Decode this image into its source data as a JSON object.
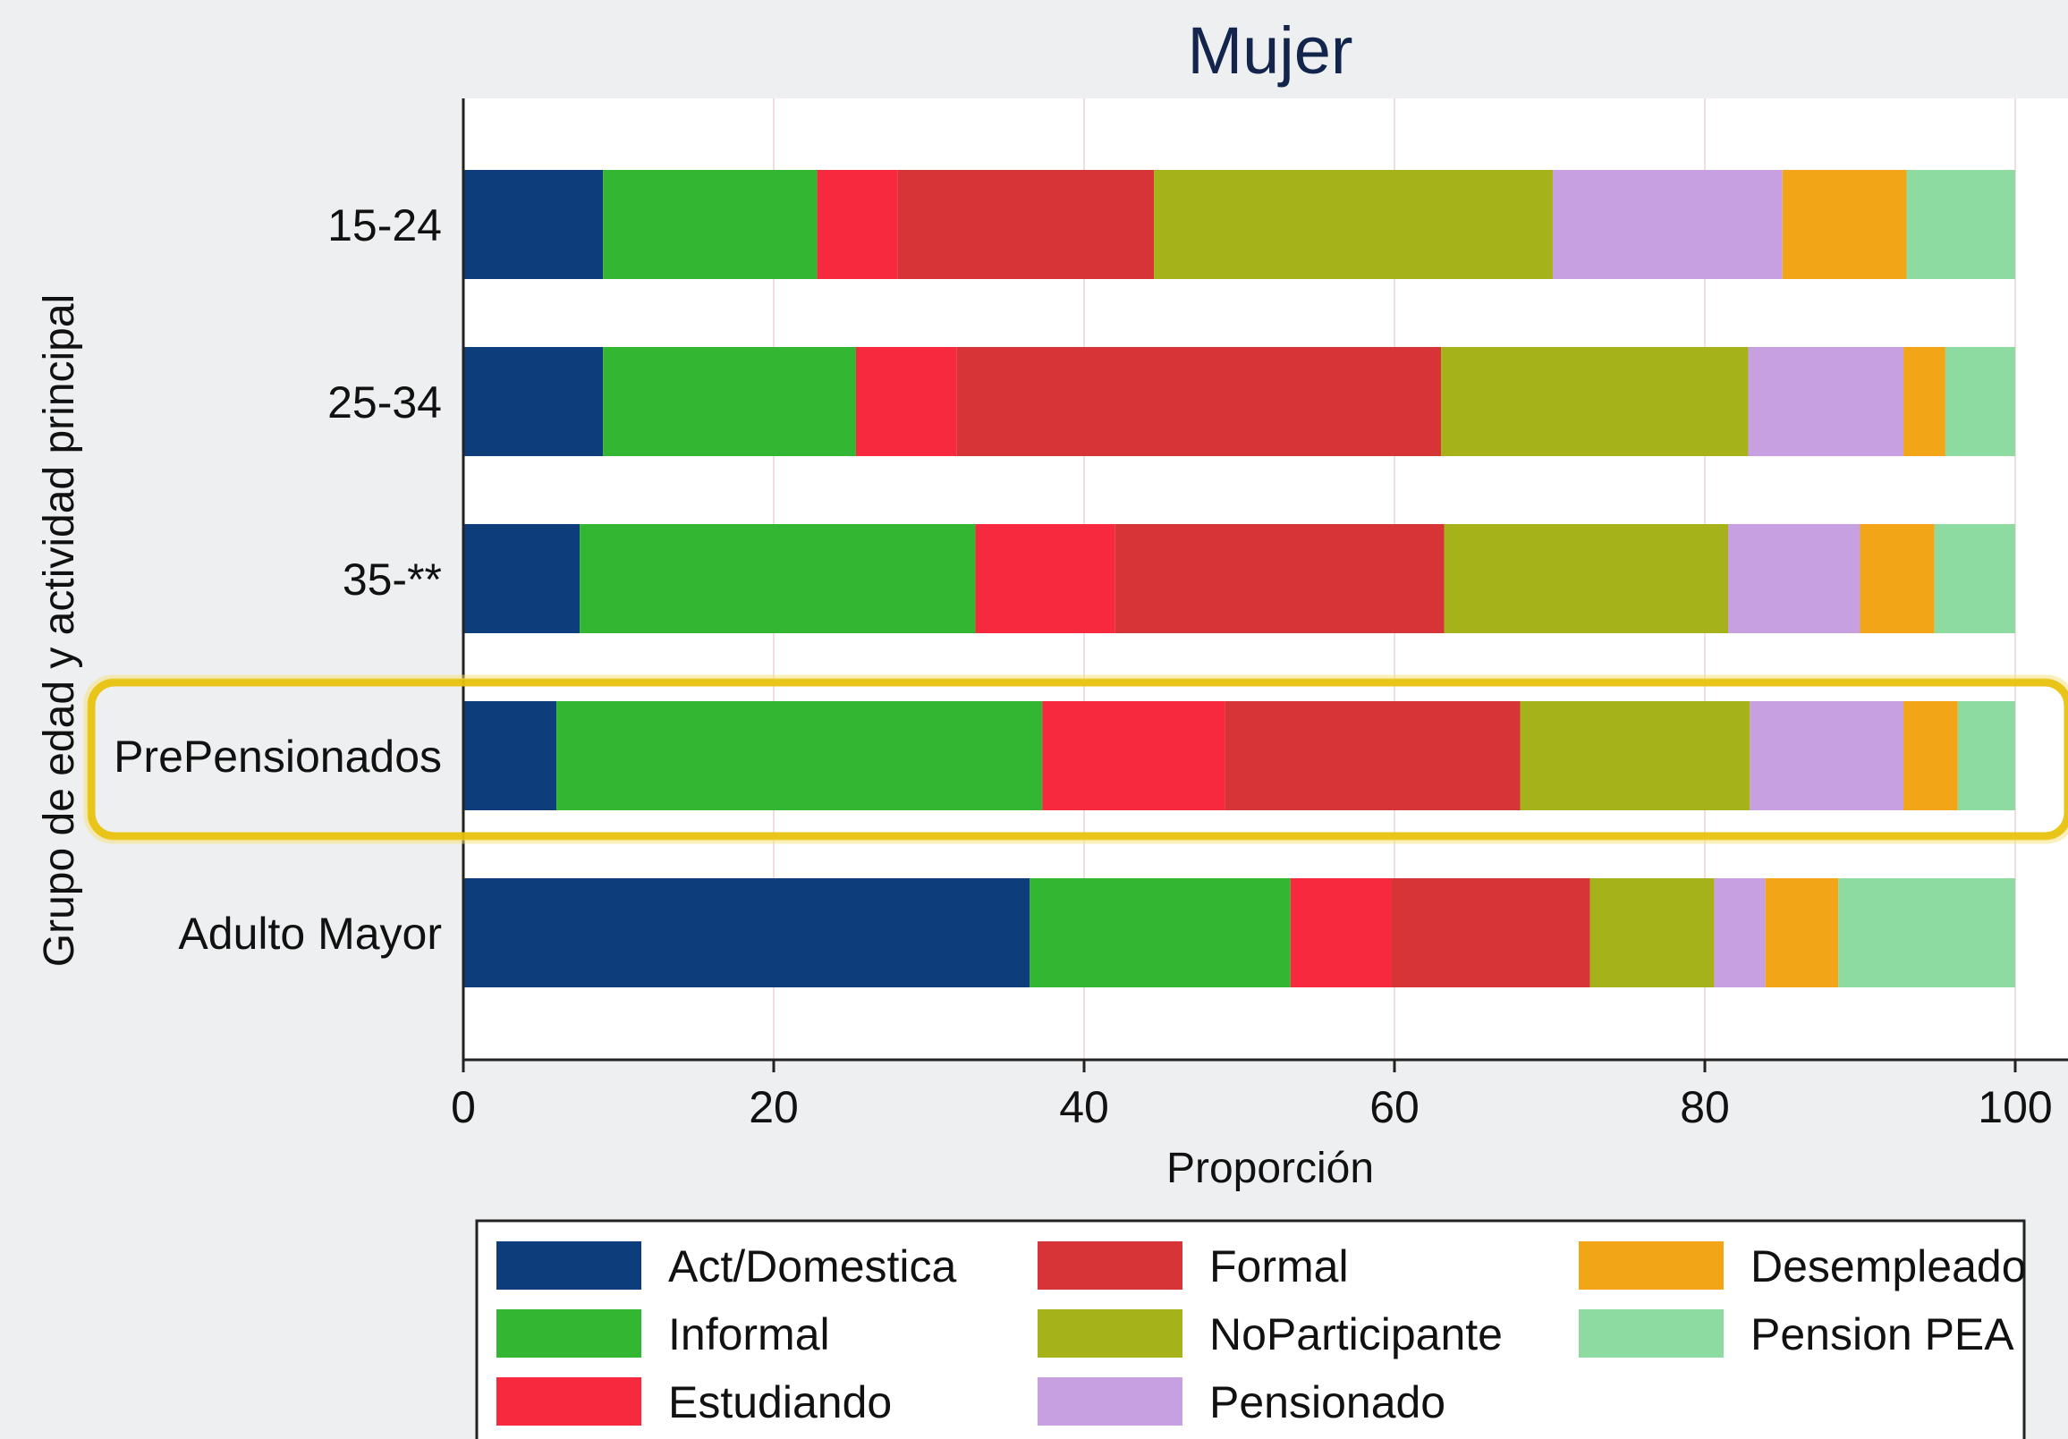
{
  "chart_data": {
    "type": "bar",
    "orientation": "horizontal",
    "stacked": true,
    "title": "Mujer",
    "xlabel": "Proporción",
    "ylabel": "Grupo de edad y actividad principal",
    "xlim": [
      0,
      100
    ],
    "xticks": [
      "0",
      "20",
      "40",
      "60",
      "80",
      "100"
    ],
    "grid": "vertical",
    "legend_position": "bottom",
    "highlighted_category": "PrePensionados",
    "categories": [
      "15-24",
      "25-34",
      "35-**",
      "PrePensionados",
      "Adulto Mayor"
    ],
    "series": [
      {
        "name": "Act/Domestica",
        "color": "#0d3d7a",
        "values": [
          9.0,
          9.0,
          7.5,
          6.0,
          36.5
        ]
      },
      {
        "name": "Informal",
        "color": "#33b733",
        "values": [
          13.8,
          16.3,
          25.5,
          31.3,
          16.8
        ]
      },
      {
        "name": "Estudiando",
        "color": "#f7293f",
        "values": [
          5.2,
          6.5,
          9.0,
          11.8,
          6.5
        ]
      },
      {
        "name": "Formal",
        "color": "#d63437",
        "values": [
          16.5,
          31.2,
          21.2,
          19.0,
          12.8
        ]
      },
      {
        "name": "NoParticipante",
        "color": "#a6b21a",
        "values": [
          25.7,
          19.8,
          18.3,
          14.8,
          8.0
        ]
      },
      {
        "name": "Pensionado",
        "color": "#c6a0e0",
        "values": [
          14.8,
          10.0,
          8.5,
          9.9,
          3.3
        ]
      },
      {
        "name": "Desempleado",
        "color": "#f2a516",
        "values": [
          8.0,
          2.7,
          4.8,
          3.5,
          4.7
        ]
      },
      {
        "name": "Pension PEA",
        "color": "#8ddba1",
        "values": [
          7.0,
          4.5,
          5.2,
          3.7,
          11.4
        ]
      }
    ]
  }
}
